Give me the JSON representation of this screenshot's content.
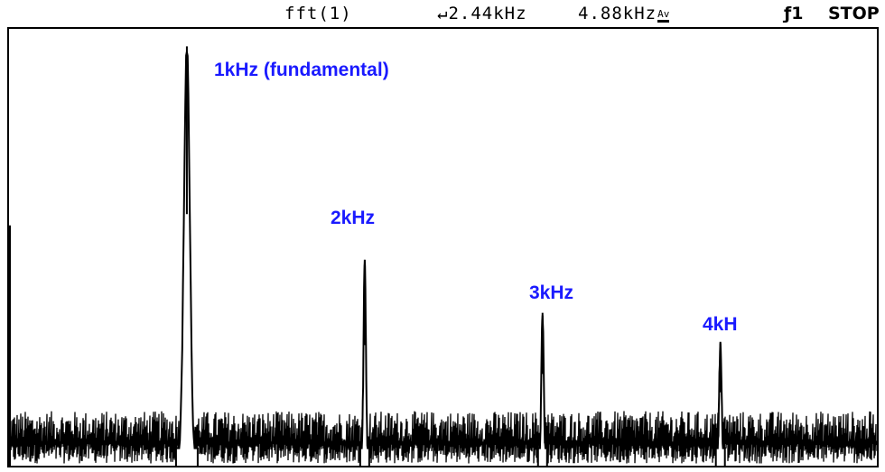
{
  "status": {
    "fft_label": "fft(1)",
    "center_arrow": "↵",
    "center_freq": "2.44kHz",
    "span_freq": "4.88kHz",
    "averaging_badge": "Av",
    "trigger_symbol": "ƒ1",
    "run_state": "STOP"
  },
  "annotations": [
    {
      "text": "1kHz (fundamental)"
    },
    {
      "text": "2kHz"
    },
    {
      "text": "3kHz"
    },
    {
      "text": "4kH"
    }
  ],
  "chart_data": {
    "type": "line",
    "xlabel": "",
    "ylabel": "",
    "x_unit": "kHz",
    "xlim": [
      0,
      4.88
    ],
    "grid": false,
    "peaks": [
      {
        "freq_khz": 1.0,
        "level": 0.96
      },
      {
        "freq_khz": 2.0,
        "level": 0.46
      },
      {
        "freq_khz": 3.0,
        "level": 0.35
      },
      {
        "freq_khz": 4.0,
        "level": 0.28
      }
    ],
    "noise_floor_level": 0.1,
    "colors": {
      "trace": "#000000",
      "annotation": "#1a1aff"
    }
  }
}
